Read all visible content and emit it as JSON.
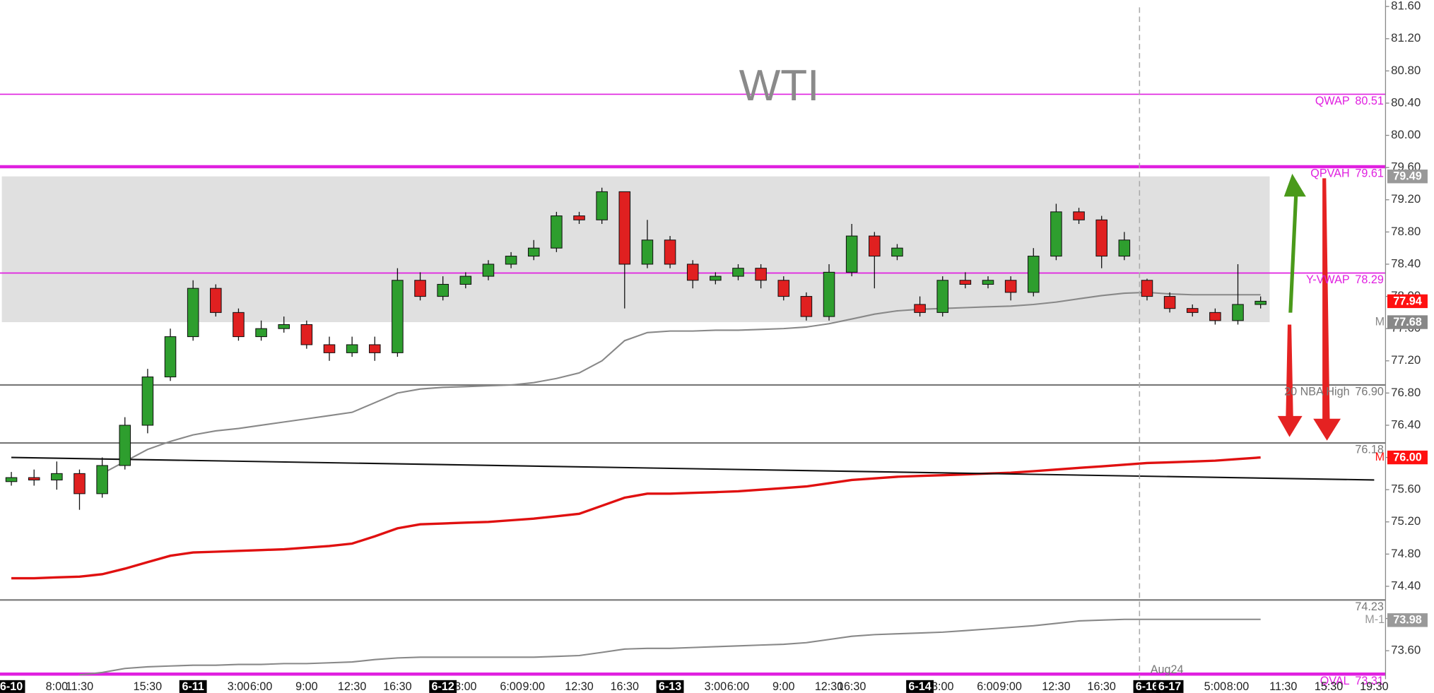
{
  "chart_data": {
    "type": "candlestick",
    "title": "WTI",
    "annotation": "Aug24",
    "categories": [
      "6-10",
      null,
      "8:00",
      "11:30",
      null,
      null,
      "15:30",
      null,
      "6-11",
      null,
      "3:00",
      "6:00",
      null,
      "9:00",
      null,
      "12:30",
      null,
      "16:30",
      null,
      "6-12",
      "3:00",
      null,
      "6:00",
      "9:00",
      null,
      "12:30",
      null,
      "16:30",
      null,
      "6-13",
      null,
      "3:00",
      "6:00",
      null,
      "9:00",
      null,
      "12:30",
      "16:30",
      null,
      null,
      "6-14",
      "3:00",
      null,
      "6:00",
      "9:00",
      null,
      "12:30",
      null,
      "16:30",
      null,
      "6-16",
      "6-17",
      null,
      "5:00",
      "8:00",
      null,
      "11:30",
      null,
      "15:30",
      null,
      "19:30"
    ],
    "candles": {
      "open": [
        75.7,
        75.75,
        75.72,
        75.8,
        75.55,
        75.9,
        76.4,
        77.0,
        77.5,
        78.1,
        77.8,
        77.5,
        77.6,
        77.65,
        77.4,
        77.3,
        77.4,
        77.3,
        78.2,
        78.0,
        78.15,
        78.25,
        78.4,
        78.5,
        78.6,
        79.0,
        78.95,
        79.3,
        78.4,
        78.7,
        78.4,
        78.2,
        78.25,
        78.35,
        78.2,
        78.0,
        77.75,
        78.3,
        78.75,
        78.5,
        77.9,
        77.8,
        78.2,
        78.15,
        78.2,
        78.05,
        78.5,
        79.05,
        78.95,
        78.5,
        78.2,
        78.0,
        77.85,
        77.8,
        77.7,
        77.9,
        null,
        null,
        null,
        null,
        null
      ],
      "high": [
        75.82,
        75.85,
        75.95,
        75.85,
        76.0,
        76.5,
        77.1,
        77.6,
        78.2,
        78.15,
        77.85,
        77.7,
        77.75,
        77.7,
        77.5,
        77.5,
        77.5,
        78.35,
        78.3,
        78.25,
        78.3,
        78.45,
        78.55,
        78.7,
        79.05,
        79.05,
        79.35,
        79.3,
        78.95,
        78.75,
        78.45,
        78.3,
        78.4,
        78.4,
        78.25,
        78.05,
        78.4,
        78.9,
        78.8,
        78.65,
        78.0,
        78.25,
        78.3,
        78.25,
        78.25,
        78.6,
        79.15,
        79.1,
        79.0,
        78.8,
        78.22,
        78.05,
        77.9,
        77.85,
        78.4,
        78.0,
        null,
        null,
        null,
        null,
        null
      ],
      "low": [
        75.65,
        75.65,
        75.6,
        75.35,
        75.5,
        75.85,
        76.3,
        76.95,
        77.45,
        77.75,
        77.45,
        77.45,
        77.55,
        77.35,
        77.2,
        77.25,
        77.2,
        77.25,
        77.95,
        77.95,
        78.1,
        78.2,
        78.35,
        78.45,
        78.55,
        78.9,
        78.9,
        77.85,
        78.35,
        78.35,
        78.1,
        78.15,
        78.2,
        78.1,
        77.95,
        77.7,
        77.7,
        78.25,
        78.1,
        78.45,
        77.75,
        77.75,
        78.1,
        78.1,
        77.95,
        78.0,
        78.45,
        78.9,
        78.35,
        78.45,
        77.95,
        77.8,
        77.75,
        77.65,
        77.65,
        77.85,
        null,
        null,
        null,
        null,
        null
      ],
      "close": [
        75.75,
        75.72,
        75.8,
        75.55,
        75.9,
        76.4,
        77.0,
        77.5,
        78.1,
        77.8,
        77.5,
        77.6,
        77.65,
        77.4,
        77.3,
        77.4,
        77.3,
        78.2,
        78.0,
        78.15,
        78.25,
        78.4,
        78.5,
        78.6,
        79.0,
        78.95,
        79.3,
        78.4,
        78.7,
        78.4,
        78.2,
        78.25,
        78.35,
        78.2,
        78.0,
        77.75,
        78.3,
        78.75,
        78.5,
        78.6,
        77.8,
        78.2,
        78.15,
        78.2,
        78.05,
        78.5,
        79.05,
        78.95,
        78.5,
        78.7,
        78.0,
        77.85,
        77.8,
        77.7,
        77.9,
        77.94,
        null,
        null,
        null,
        null,
        null
      ]
    },
    "up_color": "#2e9e2e",
    "down_color": "#e02020",
    "ylim": [
      73.28,
      81.68
    ],
    "yticks": [
      {
        "value": 73.6,
        "label": "73.60"
      },
      {
        "value": 74.0,
        "label": "74.00"
      },
      {
        "value": 74.4,
        "label": "74.40"
      },
      {
        "value": 74.8,
        "label": "74.80"
      },
      {
        "value": 75.2,
        "label": "75.20"
      },
      {
        "value": 75.6,
        "label": "75.60"
      },
      {
        "value": 76.0,
        "label": "76.00"
      },
      {
        "value": 76.4,
        "label": "76.40"
      },
      {
        "value": 76.8,
        "label": "76.80"
      },
      {
        "value": 77.2,
        "label": "77.20"
      },
      {
        "value": 77.6,
        "label": "77.60"
      },
      {
        "value": 78.0,
        "label": "78.00"
      },
      {
        "value": 78.4,
        "label": "78.40"
      },
      {
        "value": 78.8,
        "label": "78.80"
      },
      {
        "value": 79.2,
        "label": "79.20"
      },
      {
        "value": 79.6,
        "label": "79.60"
      },
      {
        "value": 80.0,
        "label": "80.00"
      },
      {
        "value": 80.4,
        "label": "80.40"
      },
      {
        "value": 80.8,
        "label": "80.80"
      },
      {
        "value": 81.2,
        "label": "81.20"
      },
      {
        "value": 81.6,
        "label": "81.60"
      }
    ],
    "value_area": {
      "high": 79.49,
      "low": 77.68,
      "color": "#e0e0e0"
    },
    "levels": [
      {
        "name": "QWAP",
        "value": 80.51,
        "color": "#e020e0",
        "width": 1.3
      },
      {
        "name": "QPVAH",
        "value": 79.61,
        "color": "#e020e0",
        "width": 3.5
      },
      {
        "name": "Y-VWAP",
        "value": 78.29,
        "color": "#e020e0",
        "width": 1.3
      },
      {
        "name": "20 NBA High",
        "value": 76.9,
        "value_label": "76.90",
        "color": "#777777",
        "width": 1.6
      },
      {
        "value": 76.18,
        "color": "#777777",
        "width": 1.6
      },
      {
        "value": 74.23,
        "color": "#777777",
        "width": 1.6
      },
      {
        "name": "QVAL",
        "value": 73.31,
        "color": "#e020e0",
        "width": 3.5
      }
    ],
    "lines": [
      {
        "color": "#e01010",
        "width": 2.6,
        "values": [
          74.5,
          74.5,
          74.51,
          74.52,
          74.55,
          74.62,
          74.7,
          74.78,
          74.82,
          74.83,
          74.84,
          74.85,
          74.86,
          74.88,
          74.9,
          74.93,
          75.02,
          75.12,
          75.17,
          75.18,
          75.19,
          75.2,
          75.22,
          75.24,
          75.27,
          75.3,
          75.4,
          75.5,
          75.55,
          75.55,
          75.56,
          75.57,
          75.58,
          75.6,
          75.62,
          75.64,
          75.68,
          75.72,
          75.74,
          75.76,
          75.77,
          75.78,
          75.79,
          75.8,
          75.81,
          75.83,
          75.85,
          75.87,
          75.89,
          75.91,
          75.93,
          75.94,
          75.95,
          75.96,
          75.98,
          76.0,
          null,
          null,
          null,
          null,
          null
        ]
      },
      {
        "color": "#888888",
        "width": 1.6,
        "values": [
          null,
          null,
          null,
          null,
          75.8,
          75.95,
          76.1,
          76.2,
          76.28,
          76.33,
          76.36,
          76.4,
          76.44,
          76.48,
          76.52,
          76.56,
          76.68,
          76.8,
          76.85,
          76.87,
          76.88,
          76.89,
          76.9,
          76.93,
          76.98,
          77.05,
          77.2,
          77.45,
          77.55,
          77.57,
          77.57,
          77.58,
          77.58,
          77.59,
          77.6,
          77.62,
          77.66,
          77.72,
          77.78,
          77.82,
          77.84,
          77.85,
          77.86,
          77.87,
          77.88,
          77.9,
          77.93,
          77.97,
          78.01,
          78.04,
          78.05,
          78.03,
          78.02,
          78.02,
          78.02,
          78.02,
          null,
          null,
          null,
          null,
          null
        ]
      },
      {
        "color": "#888888",
        "width": 1.6,
        "values": [
          null,
          null,
          null,
          73.3,
          73.33,
          73.38,
          73.4,
          73.41,
          73.42,
          73.42,
          73.43,
          73.43,
          73.44,
          73.44,
          73.45,
          73.46,
          73.49,
          73.51,
          73.52,
          73.52,
          73.52,
          73.52,
          73.52,
          73.52,
          73.53,
          73.54,
          73.58,
          73.62,
          73.63,
          73.63,
          73.64,
          73.65,
          73.66,
          73.67,
          73.68,
          73.7,
          73.74,
          73.78,
          73.8,
          73.81,
          73.82,
          73.83,
          73.85,
          73.87,
          73.89,
          73.91,
          73.94,
          73.97,
          73.98,
          73.99,
          73.99,
          73.99,
          73.99,
          73.99,
          73.99,
          73.99,
          null,
          null,
          null,
          null,
          null
        ]
      },
      {
        "color": "#111111",
        "width": 1.6,
        "x": [
          0,
          60
        ],
        "values": [
          76.0,
          75.72
        ]
      }
    ],
    "price_tags": [
      {
        "value": 79.49,
        "color": "#999999"
      },
      {
        "value": 77.68,
        "color": "#888888",
        "prefix": "M"
      },
      {
        "value": 77.94,
        "color": "#ff1010"
      },
      {
        "value": 76.0,
        "label": "76.00",
        "color": "#ff1010",
        "prefix": "M"
      },
      {
        "value": 73.98,
        "color": "#999999",
        "prefix": "M-1"
      }
    ]
  }
}
